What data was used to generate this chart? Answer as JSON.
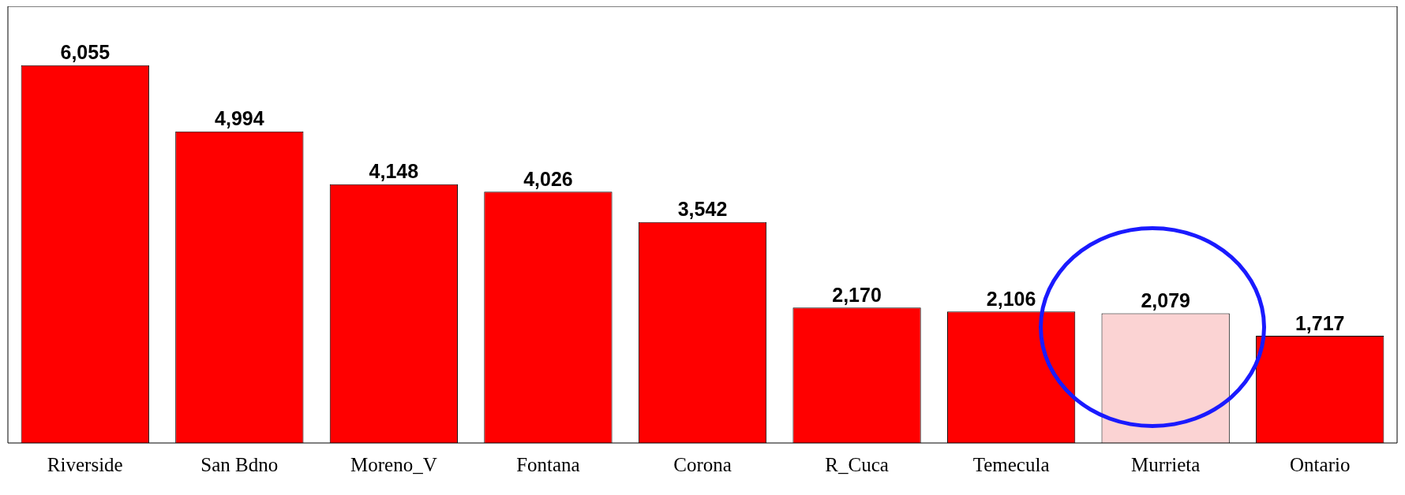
{
  "chart_data": {
    "type": "bar",
    "categories": [
      "Riverside",
      "San Bdno",
      "Moreno_V",
      "Fontana",
      "Corona",
      "R_Cuca",
      "Temecula",
      "Murrieta",
      "Ontario"
    ],
    "values": [
      6055,
      4994,
      4148,
      4026,
      3542,
      2170,
      2106,
      2079,
      1717
    ],
    "colors": [
      "#ff0000",
      "#ff0000",
      "#ff0000",
      "#ff0000",
      "#ff0000",
      "#ff0000",
      "#ff0000",
      "#fbd3d3",
      "#ff0000"
    ],
    "value_labels": [
      "6,055",
      "4,994",
      "4,148",
      "4,026",
      "3,542",
      "2,170",
      "2,106",
      "2,079",
      "1,717"
    ],
    "grid": false,
    "legend": false,
    "tick_labels": "x"
  }
}
